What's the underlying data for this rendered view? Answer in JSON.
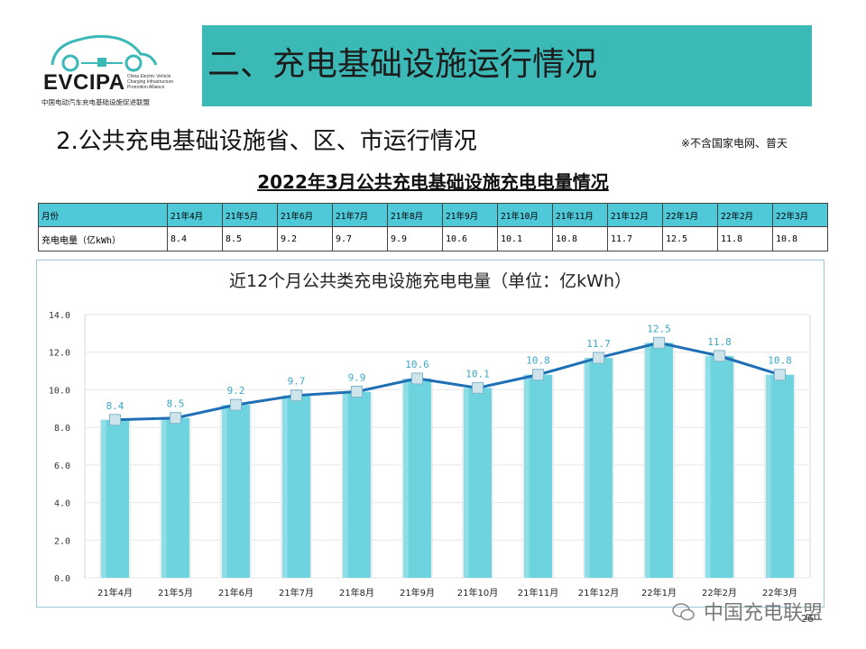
{
  "logo": {
    "text": "EVCIPA",
    "subtitle": "China Electric Vehicle Charging Infrastructure Promotion Alliance",
    "cn_name": "中国电动汽车充电基础设施促进联盟"
  },
  "header": {
    "title": "二、充电基础设施运行情况"
  },
  "section": {
    "title": "2.公共充电基础设施省、区、市运行情况",
    "note": "※不含国家电网、普天"
  },
  "table": {
    "title": "2022年3月公共充电基础设施充电电量情况",
    "row_label_header": "月份",
    "row_label_value": "充电电量（亿kWh）",
    "months": [
      "21年4月",
      "21年5月",
      "21年6月",
      "21年7月",
      "21年8月",
      "21年9月",
      "21年10月",
      "21年11月",
      "21年12月",
      "22年1月",
      "22年2月",
      "22年3月"
    ],
    "values": [
      "8.4",
      "8.5",
      "9.2",
      "9.7",
      "9.9",
      "10.6",
      "10.1",
      "10.8",
      "11.7",
      "12.5",
      "11.8",
      "10.8"
    ]
  },
  "chart_data": {
    "type": "bar",
    "title": "近12个月公共类充电设施充电电量（单位：亿kWh）",
    "categories": [
      "21年4月",
      "21年5月",
      "21年6月",
      "21年7月",
      "21年8月",
      "21年9月",
      "21年10月",
      "21年11月",
      "21年12月",
      "22年1月",
      "22年2月",
      "22年3月"
    ],
    "values": [
      8.4,
      8.5,
      9.2,
      9.7,
      9.9,
      10.6,
      10.1,
      10.8,
      11.7,
      12.5,
      11.8,
      10.8
    ],
    "line_overlay": true,
    "ylim": [
      0,
      14
    ],
    "yticks": [
      "0.0",
      "2.0",
      "4.0",
      "6.0",
      "8.0",
      "10.0",
      "12.0",
      "14.0"
    ],
    "data_labels": [
      "8.4",
      "8.5",
      "9.2",
      "9.7",
      "9.9",
      "10.6",
      "10.1",
      "10.8",
      "11.7",
      "12.5",
      "11.8",
      "10.8"
    ],
    "grid": true,
    "colors": {
      "bar": "#6dd3df",
      "line": "#1f6fb5",
      "marker": "#cfe3ea",
      "label": "#3ba7c6"
    }
  },
  "watermark": {
    "text": "中国充电联盟",
    "icon": "wechat-icon"
  },
  "page_number": "26"
}
